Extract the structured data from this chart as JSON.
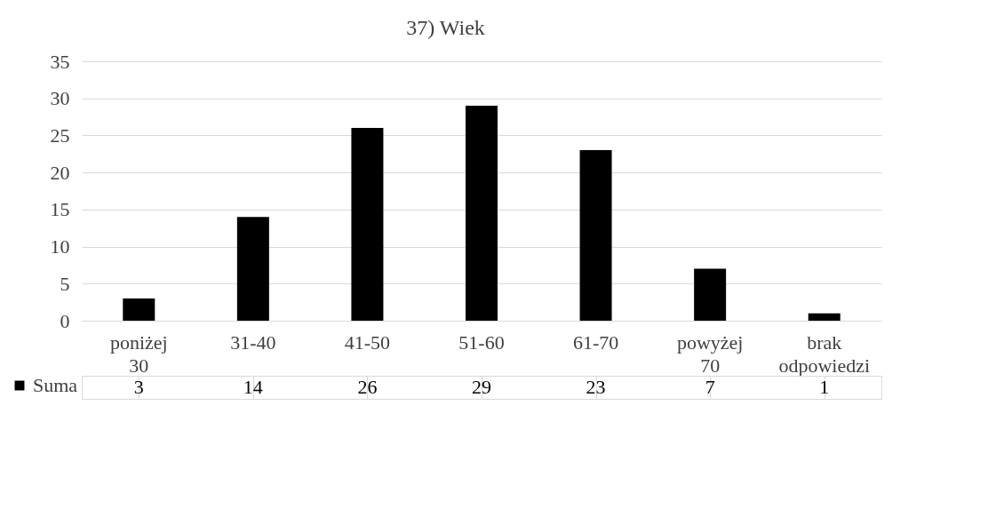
{
  "chart_data": {
    "type": "bar",
    "title": "37) Wiek",
    "categories": [
      "poniżej 30",
      "31-40",
      "41-50",
      "51-60",
      "61-70",
      "powyżej 70",
      "brak odpowiedzi"
    ],
    "series": [
      {
        "name": "Suma",
        "color": "#000000",
        "values": [
          3,
          14,
          26,
          29,
          23,
          7,
          1
        ]
      }
    ],
    "ylim": [
      0,
      35
    ],
    "yticks": [
      0,
      5,
      10,
      15,
      20,
      25,
      30,
      35
    ],
    "grid": "y",
    "data_labels": true,
    "legend": "bottom"
  }
}
